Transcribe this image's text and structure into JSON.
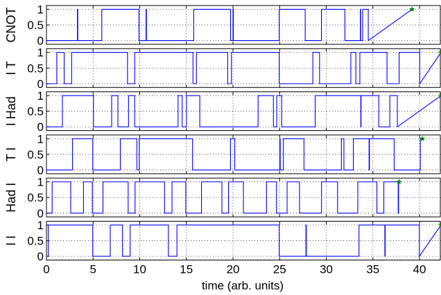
{
  "figure": {
    "xlabel": "time (arb. units)",
    "x_ticks": [
      "0",
      "5",
      "10",
      "15",
      "20",
      "25",
      "30",
      "35",
      "40"
    ],
    "y_ticks": [
      "0",
      "0.5",
      "1"
    ]
  },
  "colors": {
    "trace": "#0000ff",
    "star": "#008000",
    "grid": "#000000",
    "axes": "#000000"
  },
  "chart_data": [
    {
      "type": "line",
      "ylabel": "CNOT",
      "xlim": [
        0,
        42.3
      ],
      "ylim": [
        -0.12,
        1.12
      ],
      "grid": true,
      "x": [
        0,
        3.32,
        3.32,
        3.36,
        3.36,
        5.93,
        5.93,
        9.92,
        9.92,
        10.68,
        10.68,
        10.72,
        10.72,
        15.79,
        15.79,
        19.74,
        19.74,
        20.0,
        20.0,
        20.04,
        20.04,
        24.95,
        24.95,
        27.74,
        27.74,
        29.48,
        29.48,
        32.0,
        32.0,
        33.65,
        33.65,
        33.68,
        33.68,
        33.9,
        33.9,
        34.5,
        34.5,
        39.2
      ],
      "values": [
        0,
        0,
        1,
        1,
        0,
        0,
        1,
        1,
        0,
        0,
        1,
        1,
        0,
        0,
        1,
        1,
        0,
        0,
        1,
        1,
        0,
        0,
        1,
        1,
        0,
        0,
        1,
        1,
        0,
        0,
        1,
        1,
        0,
        0,
        1,
        1,
        0,
        1
      ],
      "markers": [
        {
          "x": 39.2,
          "y": 1.0,
          "symbol": "star"
        }
      ]
    },
    {
      "type": "line",
      "ylabel": "I T",
      "xlim": [
        0,
        42.3
      ],
      "ylim": [
        -0.12,
        1.12
      ],
      "grid": true,
      "x": [
        0,
        1.11,
        1.11,
        1.9,
        1.9,
        2.7,
        2.7,
        8.69,
        8.69,
        9.46,
        9.46,
        15.71,
        15.71,
        16.08,
        16.08,
        19.43,
        19.43,
        19.83,
        19.83,
        24.95,
        24.95,
        28.56,
        28.56,
        29.28,
        29.28,
        32.63,
        32.63,
        33.17,
        33.17,
        33.6,
        33.6,
        36.51,
        36.51,
        37.81,
        37.81,
        40.02,
        40.02,
        42.3
      ],
      "values": [
        0,
        0,
        1,
        1,
        0,
        0,
        1,
        1,
        0,
        0,
        1,
        1,
        0,
        0,
        1,
        1,
        0,
        0,
        1,
        1,
        0,
        0,
        1,
        1,
        0,
        0,
        1,
        1,
        0,
        0,
        1,
        1,
        0,
        0,
        1,
        1,
        0,
        1
      ],
      "markers": [
        {
          "x": 42.3,
          "y": 1.0,
          "symbol": "star"
        }
      ]
    },
    {
      "type": "line",
      "ylabel": "I Had",
      "xlim": [
        0,
        42.3
      ],
      "ylim": [
        -0.12,
        1.12
      ],
      "grid": true,
      "x": [
        0,
        1.71,
        1.71,
        5.04,
        5.04,
        6.99,
        6.99,
        7.66,
        7.66,
        8.8,
        8.8,
        9.46,
        9.46,
        14.11,
        14.11,
        14.55,
        14.55,
        15.01,
        15.01,
        16.44,
        16.44,
        22.69,
        22.69,
        24.33,
        24.33,
        24.69,
        24.69,
        25.22,
        25.22,
        28.81,
        28.81,
        33.7,
        33.7,
        33.73,
        33.73,
        35.63,
        35.63,
        36.81,
        36.81,
        37.62,
        37.62,
        42.3
      ],
      "values": [
        0,
        0,
        1,
        1,
        0,
        0,
        1,
        1,
        0,
        0,
        1,
        1,
        0,
        0,
        1,
        1,
        0,
        0,
        1,
        1,
        0,
        0,
        1,
        1,
        0,
        0,
        1,
        1,
        0,
        0,
        1,
        1,
        0,
        0,
        1,
        1,
        0,
        0,
        1,
        1,
        0,
        1
      ],
      "markers": [
        {
          "x": 42.3,
          "y": 1.0,
          "symbol": "star"
        }
      ]
    },
    {
      "type": "line",
      "ylabel": "T I",
      "xlim": [
        0,
        42.3
      ],
      "ylim": [
        -0.12,
        1.12
      ],
      "grid": true,
      "x": [
        0,
        2.79,
        2.79,
        4.96,
        4.96,
        7.92,
        7.92,
        9.7,
        9.7,
        9.95,
        9.95,
        15.66,
        15.66,
        19.73,
        19.73,
        20.19,
        20.19,
        25.02,
        25.02,
        25.06,
        25.06,
        25.4,
        25.4,
        27.61,
        27.61,
        31.62,
        31.62,
        31.89,
        31.89,
        32.9,
        32.9,
        34.59,
        34.59,
        34.63,
        34.63,
        37.28,
        37.28,
        40.08,
        40.08,
        40.3
      ],
      "values": [
        0,
        0,
        1,
        1,
        0,
        0,
        1,
        1,
        0,
        0,
        1,
        1,
        0,
        0,
        1,
        1,
        0,
        0,
        1,
        1,
        0,
        0,
        1,
        1,
        0,
        0,
        1,
        1,
        0,
        0,
        1,
        1,
        0,
        0,
        1,
        1,
        0,
        0,
        1,
        1
      ],
      "markers": [
        {
          "x": 40.3,
          "y": 1.0,
          "symbol": "star"
        }
      ]
    },
    {
      "type": "line",
      "ylabel": "Had I",
      "xlim": [
        0,
        42.3
      ],
      "ylim": [
        -0.12,
        1.12
      ],
      "grid": true,
      "x": [
        0,
        0.61,
        0.61,
        2.6,
        2.6,
        3.97,
        3.97,
        4.92,
        4.92,
        6.06,
        6.06,
        8.76,
        8.76,
        9.5,
        9.5,
        12.66,
        12.66,
        13.46,
        13.46,
        14.94,
        14.94,
        16.62,
        16.62,
        18.81,
        18.81,
        19.52,
        19.52,
        21.12,
        21.12,
        23.59,
        23.59,
        24.66,
        24.66,
        25.8,
        25.8,
        27.13,
        27.13,
        29.49,
        29.49,
        31.21,
        31.21,
        33.38,
        33.38,
        35.43,
        35.43,
        36.17,
        36.17,
        37.71,
        37.71,
        37.75,
        37.75,
        37.8
      ],
      "values": [
        0,
        0,
        1,
        1,
        0,
        0,
        1,
        1,
        0,
        0,
        1,
        1,
        0,
        0,
        1,
        1,
        0,
        0,
        1,
        1,
        0,
        0,
        1,
        1,
        0,
        0,
        1,
        1,
        0,
        0,
        1,
        1,
        0,
        0,
        1,
        1,
        0,
        0,
        1,
        1,
        0,
        0,
        1,
        1,
        0,
        0,
        1,
        1,
        0,
        0,
        1,
        1
      ],
      "markers": [
        {
          "x": 37.8,
          "y": 1.0,
          "symbol": "star"
        }
      ]
    },
    {
      "type": "line",
      "ylabel": "I I",
      "xlim": [
        0,
        42.3
      ],
      "ylim": [
        -0.12,
        1.12
      ],
      "grid": true,
      "x": [
        0,
        0.19,
        0.19,
        0.3,
        0.3,
        4.96,
        4.96,
        6.84,
        6.84,
        8.15,
        8.15,
        8.97,
        8.97,
        13.07,
        13.07,
        13.99,
        13.99,
        15.07,
        15.07,
        24.95,
        24.95,
        27.82,
        27.82,
        27.86,
        27.86,
        33.51,
        33.51,
        36.28,
        36.28,
        36.32,
        36.32,
        39.98,
        39.98,
        42.3
      ],
      "values": [
        0,
        0,
        1,
        1,
        1,
        1,
        0,
        0,
        1,
        1,
        0,
        0,
        1,
        1,
        0,
        0,
        1,
        1,
        1,
        1,
        0,
        0,
        1,
        1,
        0,
        0,
        1,
        1,
        0,
        0,
        1,
        1,
        0,
        1
      ],
      "markers": [
        {
          "x": 42.3,
          "y": 1.0,
          "symbol": "star"
        }
      ]
    }
  ]
}
